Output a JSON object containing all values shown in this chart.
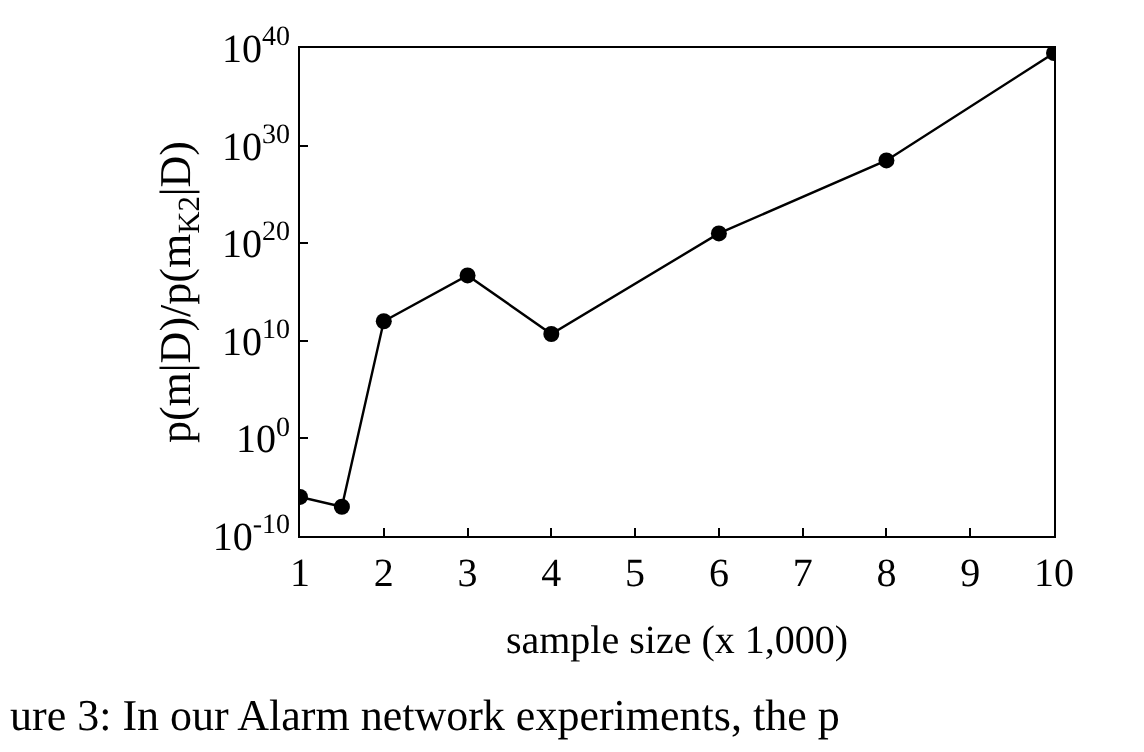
{
  "chart_data": {
    "type": "line",
    "xlabel": "sample size (x 1,000)",
    "ylabel": "p(m|D)/p(m$_{K2}$|D)",
    "x": [
      1,
      1.5,
      2,
      3,
      4,
      6,
      8,
      10
    ],
    "series": [
      {
        "color": "#000000",
        "values": [
          1e-06,
          1e-07,
          1000000000000.0,
          5e+16,
          50000000000.0,
          1e+21,
          3e+28,
          3e+39
        ]
      }
    ],
    "log": "y",
    "marker": "circle",
    "line_style": "solid",
    "xlim": [
      1,
      10
    ],
    "xticks": [
      1,
      2,
      3,
      4,
      5,
      6,
      7,
      8,
      9,
      10
    ],
    "ylim": [
      1e-10,
      1e+40
    ],
    "yticks": [
      {
        "value": 1e-10,
        "label": "10$^{-10}$"
      },
      {
        "value": 1,
        "label": "10$^{0}$"
      },
      {
        "value": 10000000000.0,
        "label": "10$^{10}$"
      },
      {
        "value": 1e+20,
        "label": "10$^{20}$"
      },
      {
        "value": 1e+30,
        "label": "10$^{30}$"
      },
      {
        "value": 1e+40,
        "label": "10$^{40}$"
      }
    ],
    "annotations": [
      "ure 3: In our Alarm network experiments, the p"
    ]
  }
}
